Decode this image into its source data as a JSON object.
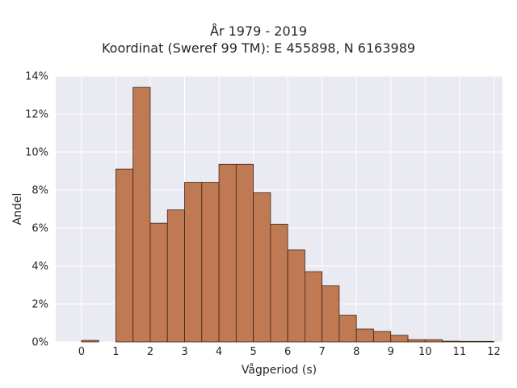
{
  "chart_data": {
    "type": "bar",
    "title_lines": [
      "År 1979 - 2019",
      "Koordinat (Sweref 99 TM): E 455898, N 6163989"
    ],
    "xlabel": "Vågperiod (s)",
    "ylabel": "Andel",
    "xlim": [
      -0.75,
      12.25
    ],
    "ylim": [
      0,
      14
    ],
    "x_ticks": [
      0,
      1,
      2,
      3,
      4,
      5,
      6,
      7,
      8,
      9,
      10,
      11,
      12
    ],
    "y_ticks": [
      0,
      2,
      4,
      6,
      8,
      10,
      12,
      14
    ],
    "y_tick_labels": [
      "0%",
      "2%",
      "4%",
      "6%",
      "8%",
      "10%",
      "12%",
      "14%"
    ],
    "bin_width": 0.5,
    "bins": [
      {
        "x0": 0.0,
        "value": 0.08
      },
      {
        "x0": 1.0,
        "value": 9.1
      },
      {
        "x0": 1.5,
        "value": 13.4
      },
      {
        "x0": 2.0,
        "value": 6.25
      },
      {
        "x0": 2.5,
        "value": 6.95
      },
      {
        "x0": 3.0,
        "value": 8.4
      },
      {
        "x0": 3.5,
        "value": 8.4
      },
      {
        "x0": 4.0,
        "value": 9.35
      },
      {
        "x0": 4.5,
        "value": 9.35
      },
      {
        "x0": 5.0,
        "value": 7.85
      },
      {
        "x0": 5.5,
        "value": 6.2
      },
      {
        "x0": 6.0,
        "value": 4.85
      },
      {
        "x0": 6.5,
        "value": 3.7
      },
      {
        "x0": 7.0,
        "value": 2.95
      },
      {
        "x0": 7.5,
        "value": 1.4
      },
      {
        "x0": 8.0,
        "value": 0.68
      },
      {
        "x0": 8.5,
        "value": 0.55
      },
      {
        "x0": 9.0,
        "value": 0.35
      },
      {
        "x0": 9.5,
        "value": 0.12
      },
      {
        "x0": 10.0,
        "value": 0.12
      },
      {
        "x0": 10.5,
        "value": 0.04
      },
      {
        "x0": 11.0,
        "value": 0.03
      },
      {
        "x0": 11.5,
        "value": 0.03
      }
    ],
    "grid": true,
    "colors": {
      "bar_fill": "#c07a53",
      "bar_edge": "#3d2418",
      "plot_background": "#eaeaf2",
      "grid": "#ffffff"
    }
  }
}
